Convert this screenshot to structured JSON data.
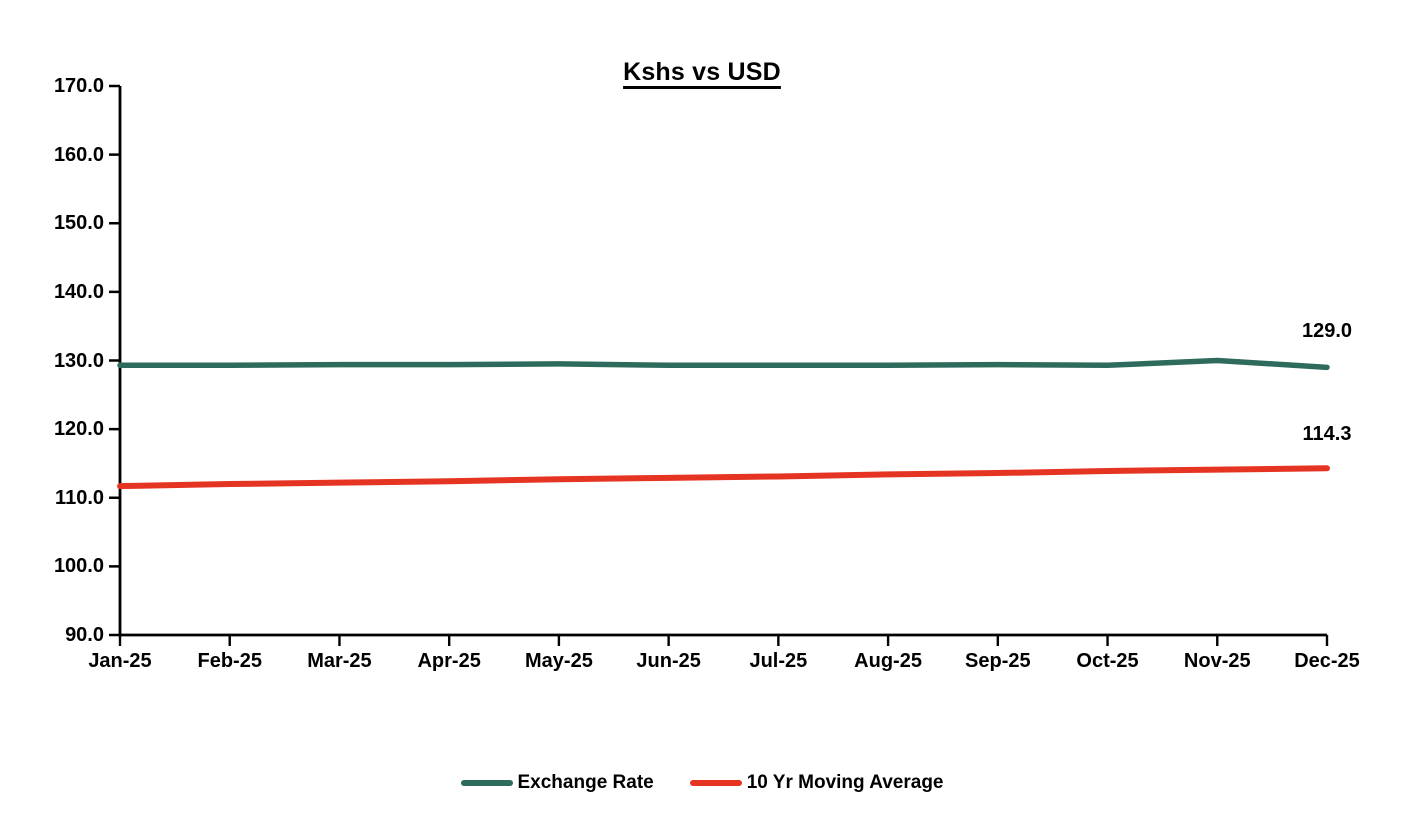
{
  "chart_data": {
    "type": "line",
    "title": "Kshs vs USD",
    "xlabel": "",
    "ylabel": "",
    "categories": [
      "Jan-25",
      "Feb-25",
      "Mar-25",
      "Apr-25",
      "May-25",
      "Jun-25",
      "Jul-25",
      "Aug-25",
      "Sep-25",
      "Oct-25",
      "Nov-25",
      "Dec-25"
    ],
    "series": [
      {
        "name": "Exchange Rate",
        "color": "#2e6b5c",
        "values": [
          129.3,
          129.3,
          129.4,
          129.4,
          129.5,
          129.3,
          129.3,
          129.3,
          129.4,
          129.3,
          130.0,
          129.0
        ],
        "end_label": "129.0"
      },
      {
        "name": "10 Yr Moving Average",
        "color": "#e63423",
        "values": [
          111.7,
          112.0,
          112.2,
          112.4,
          112.7,
          112.9,
          113.1,
          113.4,
          113.6,
          113.9,
          114.1,
          114.3
        ],
        "end_label": "114.3"
      }
    ],
    "ylim": [
      90,
      170
    ],
    "ytick_step": 10,
    "yticks": [
      "170.0",
      "160.0",
      "150.0",
      "140.0",
      "130.0",
      "120.0",
      "110.0",
      "100.0",
      "90.0"
    ],
    "grid": false,
    "legend_position": "bottom",
    "axis_color": "#000000"
  }
}
